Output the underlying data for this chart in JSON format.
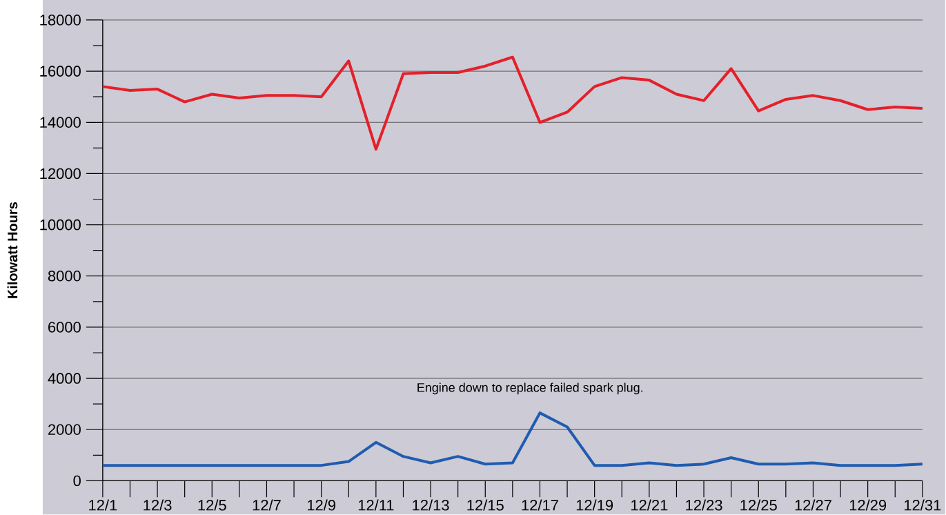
{
  "chart_data": {
    "type": "line",
    "ylabel": "Kilowatt Hours",
    "categories": [
      "12/1",
      null,
      "12/3",
      null,
      "12/5",
      null,
      "12/7",
      null,
      "12/9",
      null,
      "12/11",
      null,
      "12/13",
      null,
      "12/15",
      null,
      "12/17",
      null,
      "12/19",
      null,
      "12/21",
      null,
      "12/23",
      null,
      "12/25",
      null,
      "12/27",
      null,
      "12/29",
      null,
      "12/31"
    ],
    "series": [
      {
        "color": "#e4202a",
        "values": [
          15400,
          15250,
          15300,
          14800,
          15100,
          14950,
          15050,
          15050,
          15000,
          16400,
          12950,
          15900,
          15950,
          15950,
          16200,
          16550,
          14000,
          14400,
          15400,
          15750,
          15650,
          15100,
          14850,
          16100,
          14450,
          14900,
          15050,
          14850,
          14500,
          14600,
          14550
        ]
      },
      {
        "color": "#1f5cb0",
        "values": [
          600,
          600,
          600,
          600,
          600,
          600,
          600,
          600,
          600,
          750,
          1500,
          950,
          700,
          950,
          650,
          700,
          2650,
          2100,
          600,
          600,
          700,
          600,
          650,
          900,
          650,
          650,
          700,
          600,
          600,
          600,
          650
        ]
      }
    ],
    "ylim": [
      0,
      18000
    ],
    "yticks": [
      0,
      {
        "value": 1000,
        "label": null
      },
      2000,
      {
        "value": 3000,
        "label": null
      },
      4000,
      {
        "value": 5000,
        "label": null
      },
      6000,
      {
        "value": 7000,
        "label": null
      },
      8000,
      {
        "value": 9000,
        "label": null
      },
      10000,
      {
        "value": 11000,
        "label": null
      },
      12000,
      {
        "value": 13000,
        "label": null
      },
      14000,
      {
        "value": 15000,
        "label": null
      },
      16000,
      {
        "value": 17000,
        "label": null
      },
      18000
    ],
    "grid": "y",
    "legend": false,
    "marker": "none",
    "line_style": "solid",
    "annotations": [
      "Engine down to replace failed spark plug."
    ]
  }
}
